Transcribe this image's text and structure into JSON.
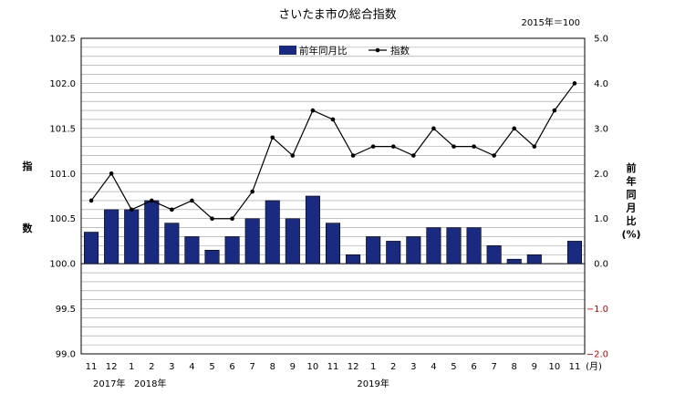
{
  "chart_data": {
    "type": "bar+line",
    "title": "さいたま市の総合指数",
    "note": "2015年＝100",
    "categories": [
      "11",
      "12",
      "1",
      "2",
      "3",
      "4",
      "5",
      "6",
      "7",
      "8",
      "9",
      "10",
      "11",
      "12",
      "1",
      "2",
      "3",
      "4",
      "5",
      "6",
      "7",
      "8",
      "9",
      "10",
      "11"
    ],
    "year_labels": [
      "2017年",
      "2018年",
      "2019年"
    ],
    "month_unit": "(月)",
    "left_axis": {
      "label_chars": [
        "指",
        "数"
      ],
      "ylim": [
        99.0,
        102.5
      ],
      "ticks": [
        "102.5",
        "102.0",
        "101.5",
        "101.0",
        "100.5",
        "100.0",
        "99.5",
        "99.0"
      ]
    },
    "right_axis": {
      "label_chars": [
        "前",
        "年",
        "同",
        "月",
        "比",
        "(%)"
      ],
      "ylim": [
        -2.0,
        5.0
      ],
      "ticks": [
        "5.0",
        "4.0",
        "3.0",
        "2.0",
        "1.0",
        "0.0",
        "−1.0",
        "−2.0"
      ]
    },
    "series": [
      {
        "name": "前年同月比",
        "type": "bar",
        "axis": "right",
        "color": "#1a2a80",
        "values": [
          0.7,
          1.2,
          1.2,
          1.4,
          0.9,
          0.6,
          0.3,
          0.6,
          1.0,
          1.4,
          1.0,
          1.5,
          0.9,
          0.2,
          0.6,
          0.5,
          0.6,
          0.8,
          0.8,
          0.8,
          0.4,
          0.1,
          0.2,
          0.0,
          0.5
        ]
      },
      {
        "name": "指数",
        "type": "line",
        "axis": "left",
        "color": "#000000",
        "values": [
          100.7,
          101.0,
          100.6,
          100.7,
          100.6,
          100.7,
          100.5,
          100.5,
          100.8,
          101.4,
          101.2,
          101.7,
          101.6,
          101.2,
          101.3,
          101.3,
          101.2,
          101.5,
          101.3,
          101.3,
          101.2,
          101.5,
          101.3,
          101.7,
          102.0
        ]
      }
    ],
    "legend_position": "top-center",
    "grid": true
  }
}
